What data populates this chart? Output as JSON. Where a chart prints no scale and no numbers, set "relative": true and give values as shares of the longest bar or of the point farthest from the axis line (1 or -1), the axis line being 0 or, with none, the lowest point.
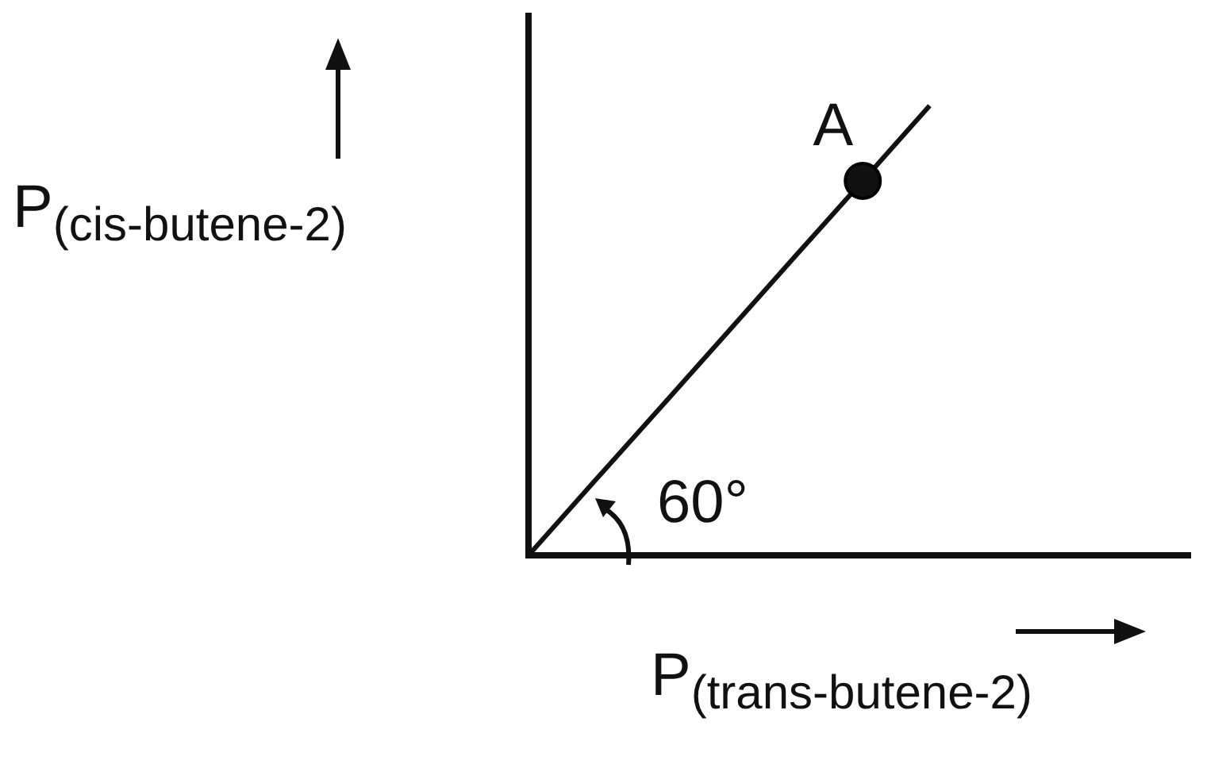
{
  "chart_data": {
    "type": "line",
    "relative": true,
    "xlabel": "P$_{(trans-butene-2)}$",
    "ylabel": "P$_{(cis-butene-2)}$",
    "categories": [
      null,
      null,
      null,
      null,
      null,
      null,
      null
    ],
    "series": [
      {
        "color": "#111111",
        "values": [
          0,
          0.167,
          0.333,
          0.5,
          0.667,
          0.833,
          1
        ]
      }
    ],
    "annotations": [
      "60°",
      "A"
    ],
    "legend": false,
    "grid": false,
    "marker": "none",
    "line_style": "solid"
  }
}
